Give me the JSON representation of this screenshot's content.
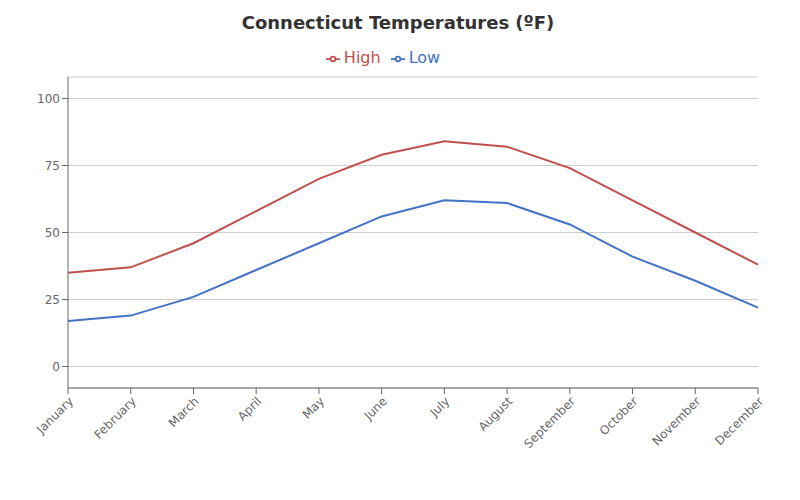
{
  "chart_data": {
    "type": "line",
    "title": "Connecticut Temperatures (ºF)",
    "categories": [
      "January",
      "February",
      "March",
      "April",
      "May",
      "June",
      "July",
      "August",
      "September",
      "October",
      "November",
      "December"
    ],
    "series": [
      {
        "name": "Low",
        "color": "#4472C4",
        "values": [
          17,
          19,
          26,
          36,
          46,
          56,
          62,
          61,
          53,
          41,
          32,
          22
        ]
      },
      {
        "name": "High",
        "color": "#C0504D",
        "values": [
          35,
          37,
          46,
          58,
          70,
          79,
          84,
          82,
          74,
          62,
          50,
          38
        ]
      }
    ],
    "ylim": [
      -8,
      108
    ],
    "yticks": [
      0,
      25,
      50,
      75,
      100
    ],
    "grid": true,
    "legend": "top"
  }
}
